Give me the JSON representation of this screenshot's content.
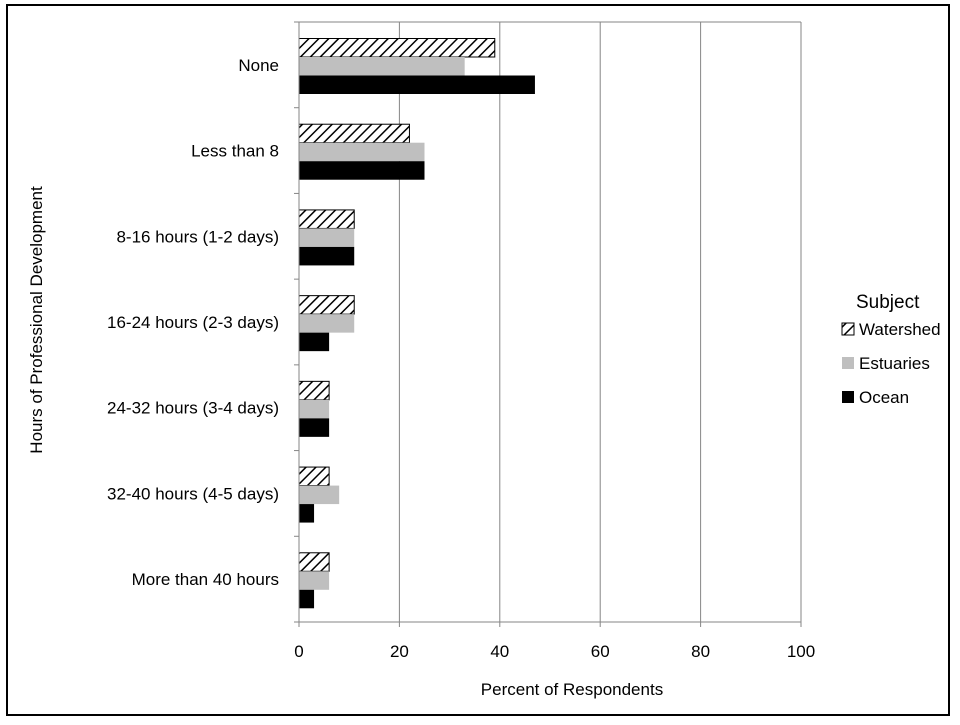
{
  "chart_data": {
    "type": "bar",
    "orientation": "horizontal",
    "title": "",
    "xlabel": "Percent of Respondents",
    "ylabel": "Hours of Professional Development",
    "xlim": [
      0,
      100
    ],
    "xticks": [
      0,
      20,
      40,
      60,
      80,
      100
    ],
    "grid": true,
    "categories": [
      "None",
      "Less than 8",
      "8-16 hours (1-2 days)",
      "16-24 hours (2-3 days)",
      "24-32 hours (3-4 days)",
      "32-40 hours (4-5 days)",
      "More than 40 hours"
    ],
    "series": [
      {
        "name": "Watershed",
        "pattern": "diagonal-hatch",
        "color": "#000000",
        "values": [
          39,
          22,
          11,
          11,
          6,
          6,
          6
        ]
      },
      {
        "name": "Estuaries",
        "pattern": "solid",
        "color": "#bfbfbf",
        "values": [
          33,
          25,
          11,
          11,
          6,
          8,
          6
        ]
      },
      {
        "name": "Ocean",
        "pattern": "solid",
        "color": "#000000",
        "values": [
          47,
          25,
          11,
          6,
          6,
          3,
          3
        ]
      }
    ],
    "legend": {
      "title": "Subject",
      "position": "right"
    }
  }
}
